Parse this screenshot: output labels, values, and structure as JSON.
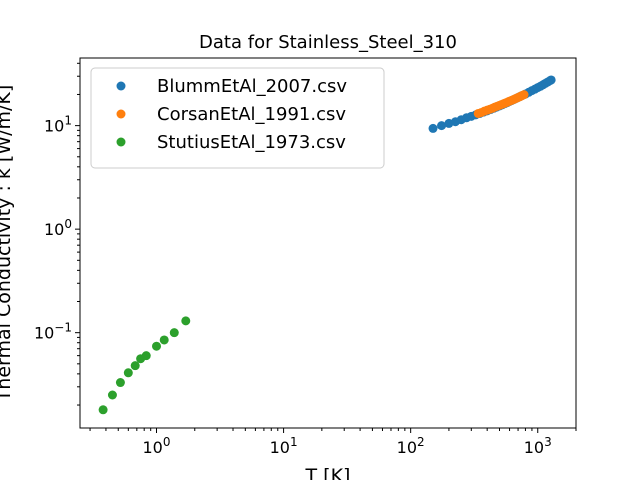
{
  "chart_data": {
    "type": "scatter",
    "title": "Data for Stainless_Steel_310",
    "xlabel": "T [K]",
    "ylabel": "Thermal Conductivity : k [W/m/K]",
    "xscale": "log",
    "yscale": "log",
    "xlim": [
      0.25,
      2000
    ],
    "ylim": [
      0.012,
      45
    ],
    "xticks": [
      {
        "value": 1,
        "label": "10^0"
      },
      {
        "value": 10,
        "label": "10^1"
      },
      {
        "value": 100,
        "label": "10^2"
      },
      {
        "value": 1000,
        "label": "10^3"
      }
    ],
    "yticks": [
      {
        "value": 0.1,
        "label": "10^-1"
      },
      {
        "value": 1,
        "label": "10^0"
      },
      {
        "value": 10,
        "label": "10^1"
      }
    ],
    "grid": false,
    "legend_position": "upper left",
    "series": [
      {
        "name": "BlummEtAl_2007.csv",
        "color": "#1f77b4",
        "x": [
          150,
          175,
          200,
          225,
          250,
          275,
          300,
          325,
          350,
          375,
          400,
          425,
          450,
          475,
          500,
          525,
          550,
          575,
          600,
          625,
          650,
          675,
          700,
          725,
          750,
          800,
          850,
          900,
          950,
          1000,
          1050,
          1100,
          1150,
          1200,
          1250,
          1275
        ],
        "y": [
          9.4,
          10.0,
          10.5,
          10.9,
          11.4,
          11.9,
          12.3,
          12.7,
          13.1,
          13.5,
          13.9,
          14.3,
          14.7,
          15.1,
          15.5,
          15.9,
          16.3,
          16.7,
          17.1,
          17.5,
          17.9,
          18.3,
          18.7,
          19.1,
          19.5,
          20.2,
          21.0,
          21.8,
          22.5,
          23.3,
          24.0,
          24.8,
          25.6,
          26.4,
          27.2,
          27.6
        ]
      },
      {
        "name": "CorsanEtAl_1991.csv",
        "color": "#ff7f0e",
        "x": [
          340,
          360,
          380,
          400,
          420,
          440,
          460,
          480,
          500,
          520,
          540,
          560,
          580,
          600,
          620,
          640,
          660,
          680,
          700,
          720,
          740,
          760,
          780
        ],
        "y": [
          13.1,
          13.4,
          13.8,
          14.1,
          14.4,
          14.7,
          15.1,
          15.4,
          15.7,
          16.0,
          16.3,
          16.6,
          16.9,
          17.2,
          17.5,
          17.8,
          18.1,
          18.4,
          18.7,
          19.0,
          19.3,
          19.6,
          19.9
        ]
      },
      {
        "name": "StutiusEtAl_1973.csv",
        "color": "#2ca02c",
        "x": [
          0.38,
          0.45,
          0.52,
          0.6,
          0.68,
          0.75,
          0.83,
          1.0,
          1.15,
          1.38,
          1.7
        ],
        "y": [
          0.018,
          0.025,
          0.033,
          0.041,
          0.048,
          0.056,
          0.06,
          0.074,
          0.085,
          0.1,
          0.13
        ]
      }
    ]
  }
}
